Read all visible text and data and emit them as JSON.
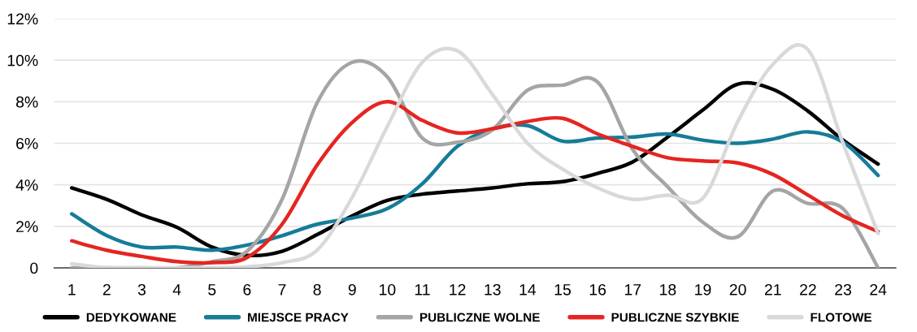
{
  "chart_data": {
    "type": "line",
    "categories": [
      "1",
      "2",
      "3",
      "4",
      "5",
      "6",
      "7",
      "8",
      "9",
      "10",
      "11",
      "12",
      "13",
      "14",
      "15",
      "16",
      "17",
      "18",
      "19",
      "20",
      "21",
      "22",
      "23",
      "24"
    ],
    "ylim": [
      0,
      12
    ],
    "yticks": [
      {
        "value": 0,
        "label": "0"
      },
      {
        "value": 2,
        "label": "2%"
      },
      {
        "value": 4,
        "label": "4%"
      },
      {
        "value": 6,
        "label": "6%"
      },
      {
        "value": 8,
        "label": "8%"
      },
      {
        "value": 10,
        "label": "10%"
      },
      {
        "value": 12,
        "label": "12%"
      }
    ],
    "grid": "y",
    "legend": "bottom",
    "line_style": "solid",
    "series": [
      {
        "name": "DEDYKOWANE",
        "color": "#000000",
        "values": [
          3.85,
          3.3,
          2.55,
          1.95,
          1.0,
          0.6,
          0.8,
          1.6,
          2.5,
          3.25,
          3.55,
          3.7,
          3.85,
          4.05,
          4.15,
          4.55,
          5.1,
          6.3,
          7.6,
          8.85,
          8.6,
          7.55,
          6.15,
          5.0
        ]
      },
      {
        "name": "MIEJSCE PRACY",
        "color": "#167c98",
        "values": [
          2.6,
          1.55,
          1.0,
          1.0,
          0.85,
          1.1,
          1.55,
          2.1,
          2.4,
          2.85,
          4.05,
          5.85,
          6.7,
          6.85,
          6.1,
          6.25,
          6.3,
          6.45,
          6.15,
          6.0,
          6.2,
          6.55,
          6.05,
          4.45
        ]
      },
      {
        "name": "PUBLICZNE WOLNE",
        "color": "#a5a5a5",
        "values": [
          0.0,
          0.0,
          0.0,
          0.0,
          0.3,
          0.8,
          3.3,
          7.95,
          9.9,
          9.2,
          6.25,
          6.05,
          6.65,
          8.55,
          8.8,
          8.95,
          5.7,
          3.9,
          2.2,
          1.5,
          3.7,
          3.1,
          2.85,
          0.0
        ]
      },
      {
        "name": "PUBLICZNE SZYBKIE",
        "color": "#e52521",
        "values": [
          1.3,
          0.85,
          0.55,
          0.3,
          0.25,
          0.5,
          2.1,
          4.95,
          7.0,
          8.0,
          7.1,
          6.5,
          6.7,
          7.05,
          7.2,
          6.45,
          5.85,
          5.3,
          5.15,
          5.05,
          4.5,
          3.5,
          2.5,
          1.75
        ]
      },
      {
        "name": "FLOTOWE",
        "color": "#d9d9d9",
        "values": [
          0.2,
          0.0,
          0.0,
          0.0,
          0.0,
          0.05,
          0.25,
          0.85,
          3.4,
          6.8,
          9.9,
          10.45,
          8.35,
          6.0,
          4.75,
          3.85,
          3.3,
          3.5,
          3.35,
          7.05,
          9.8,
          10.5,
          6.0,
          1.65
        ]
      }
    ]
  }
}
